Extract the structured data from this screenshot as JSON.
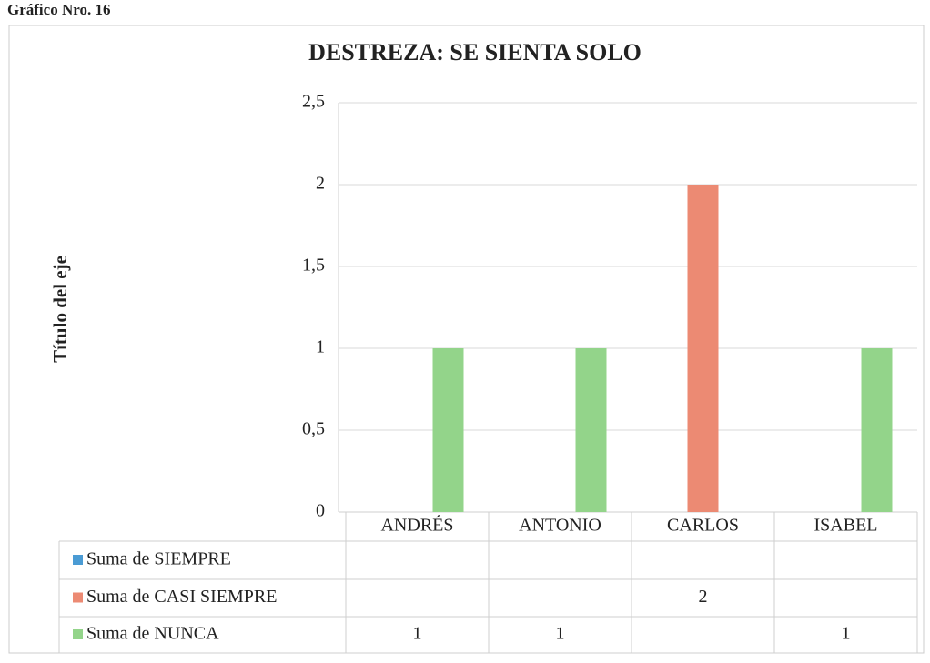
{
  "chart_data": {
    "type": "bar",
    "figure_label": "Gráfico Nro. 16",
    "title": "DESTREZA: SE SIENTA SOLO",
    "y_axis_label": "Título del eje",
    "categories": [
      "ANDRÉS",
      "ANTONIO",
      "CARLOS",
      "ISABEL"
    ],
    "series": [
      {
        "name": "Suma de SIEMPRE",
        "color": "#4a9bd4",
        "values": [
          null,
          null,
          null,
          null
        ]
      },
      {
        "name": "Suma de CASI SIEMPRE",
        "color": "#ec8a73",
        "values": [
          null,
          null,
          2,
          null
        ]
      },
      {
        "name": "Suma de NUNCA",
        "color": "#93d48a",
        "values": [
          1,
          1,
          null,
          1
        ]
      }
    ],
    "ylim": [
      0,
      2.5
    ],
    "yticks": [
      0,
      {
        "value": 0.5,
        "label": "0,5"
      },
      1,
      {
        "value": 1.5,
        "label": "1,5"
      },
      2,
      {
        "value": 2.5,
        "label": "2,5"
      }
    ],
    "grid": true,
    "data_table": true
  }
}
